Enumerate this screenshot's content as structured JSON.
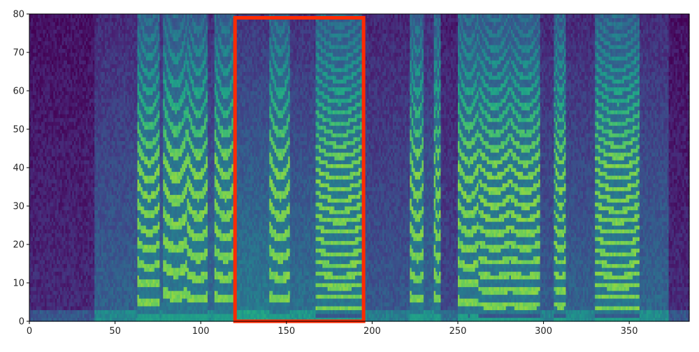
{
  "chart_data": {
    "type": "heatmap",
    "title": "",
    "xlabel": "",
    "ylabel": "",
    "xlim": [
      0,
      385
    ],
    "ylim": [
      0,
      80
    ],
    "x_ticks": [
      0,
      50,
      100,
      150,
      200,
      250,
      300,
      350
    ],
    "y_ticks": [
      0,
      10,
      20,
      30,
      40,
      50,
      60,
      70,
      80
    ],
    "x_tick_labels": [
      "0",
      "50",
      "100",
      "150",
      "200",
      "250",
      "300",
      "350"
    ],
    "y_tick_labels": [
      "0",
      "10",
      "20",
      "30",
      "40",
      "50",
      "60",
      "70",
      "80"
    ],
    "colormap": "viridis",
    "grid": false,
    "legend": "none",
    "time_frames": 385,
    "frequency_bins": 80,
    "voiced_segments": [
      {
        "x_start": 63,
        "x_end": 76,
        "f0_band": 5
      },
      {
        "x_start": 78,
        "x_end": 92,
        "f0_band": 7
      },
      {
        "x_start": 92,
        "x_end": 104,
        "f0_band": 6
      },
      {
        "x_start": 108,
        "x_end": 120,
        "f0_band": 6
      },
      {
        "x_start": 140,
        "x_end": 152,
        "f0_band": 6
      },
      {
        "x_start": 167,
        "x_end": 194,
        "f0_band": 3
      },
      {
        "x_start": 222,
        "x_end": 230,
        "f0_band": 6
      },
      {
        "x_start": 236,
        "x_end": 240,
        "f0_band": 6
      },
      {
        "x_start": 250,
        "x_end": 262,
        "f0_band": 5
      },
      {
        "x_start": 262,
        "x_end": 280,
        "f0_band": 4
      },
      {
        "x_start": 280,
        "x_end": 298,
        "f0_band": 4
      },
      {
        "x_start": 306,
        "x_end": 313,
        "f0_band": 4
      },
      {
        "x_start": 330,
        "x_end": 356,
        "f0_band": 3
      }
    ],
    "highlight_box": {
      "x0": 120,
      "x1": 195,
      "y0": 0,
      "y1": 79,
      "color": "#ff2a00"
    }
  }
}
